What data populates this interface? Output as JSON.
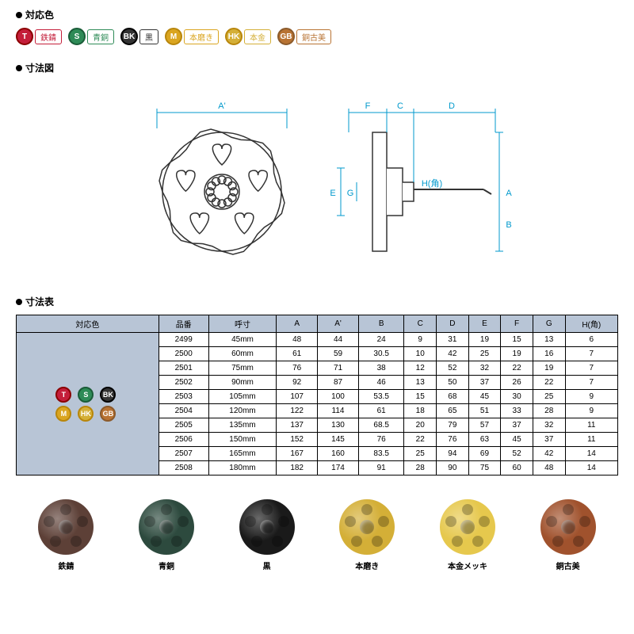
{
  "sections": {
    "colors_title": "対応色",
    "diagram_title": "寸法図",
    "table_title": "寸法表"
  },
  "color_badges": [
    {
      "code": "T",
      "label": "鉄錆",
      "bg": "#c41e3a",
      "border": "#8b0000",
      "label_color": "#c41e3a"
    },
    {
      "code": "S",
      "label": "青銅",
      "bg": "#2e8b57",
      "border": "#1a5c38",
      "label_color": "#2e8b57"
    },
    {
      "code": "BK",
      "label": "黒",
      "bg": "#333",
      "border": "#000",
      "label_color": "#333"
    },
    {
      "code": "M",
      "label": "本磨き",
      "bg": "#daa520",
      "border": "#b8860b",
      "label_color": "#daa520"
    },
    {
      "code": "HK",
      "label": "本金",
      "bg": "#d4af37",
      "border": "#b8860b",
      "label_color": "#d4af37"
    },
    {
      "code": "GB",
      "label": "銅古美",
      "bg": "#b87333",
      "border": "#8b5a2b",
      "label_color": "#b87333"
    }
  ],
  "diagram": {
    "line_color": "#0099cc",
    "labels": [
      "A'",
      "F",
      "C",
      "D",
      "E",
      "G",
      "H(角)",
      "A",
      "B"
    ]
  },
  "table": {
    "columns": [
      "対応色",
      "品番",
      "呼寸",
      "A",
      "A'",
      "B",
      "C",
      "D",
      "E",
      "F",
      "G",
      "H(角)"
    ],
    "rows": [
      [
        "2499",
        "45mm",
        "48",
        "44",
        "24",
        "9",
        "31",
        "19",
        "15",
        "13",
        "6"
      ],
      [
        "2500",
        "60mm",
        "61",
        "59",
        "30.5",
        "10",
        "42",
        "25",
        "19",
        "16",
        "7"
      ],
      [
        "2501",
        "75mm",
        "76",
        "71",
        "38",
        "12",
        "52",
        "32",
        "22",
        "19",
        "7"
      ],
      [
        "2502",
        "90mm",
        "92",
        "87",
        "46",
        "13",
        "50",
        "37",
        "26",
        "22",
        "7"
      ],
      [
        "2503",
        "105mm",
        "107",
        "100",
        "53.5",
        "15",
        "68",
        "45",
        "30",
        "25",
        "9"
      ],
      [
        "2504",
        "120mm",
        "122",
        "114",
        "61",
        "18",
        "65",
        "51",
        "33",
        "28",
        "9"
      ],
      [
        "2505",
        "135mm",
        "137",
        "130",
        "68.5",
        "20",
        "79",
        "57",
        "37",
        "32",
        "11"
      ],
      [
        "2506",
        "150mm",
        "152",
        "145",
        "76",
        "22",
        "76",
        "63",
        "45",
        "37",
        "11"
      ],
      [
        "2507",
        "165mm",
        "167",
        "160",
        "83.5",
        "25",
        "94",
        "69",
        "52",
        "42",
        "14"
      ],
      [
        "2508",
        "180mm",
        "182",
        "174",
        "91",
        "28",
        "90",
        "75",
        "60",
        "48",
        "14"
      ]
    ]
  },
  "swatches": [
    {
      "label": "鉄錆",
      "color": "#5d4037"
    },
    {
      "label": "青銅",
      "color": "#2d4a3e"
    },
    {
      "label": "黒",
      "color": "#1a1a1a"
    },
    {
      "label": "本磨き",
      "color": "#d4af37"
    },
    {
      "label": "本金メッキ",
      "color": "#e6c84d"
    },
    {
      "label": "銅古美",
      "color": "#a0522d"
    }
  ]
}
